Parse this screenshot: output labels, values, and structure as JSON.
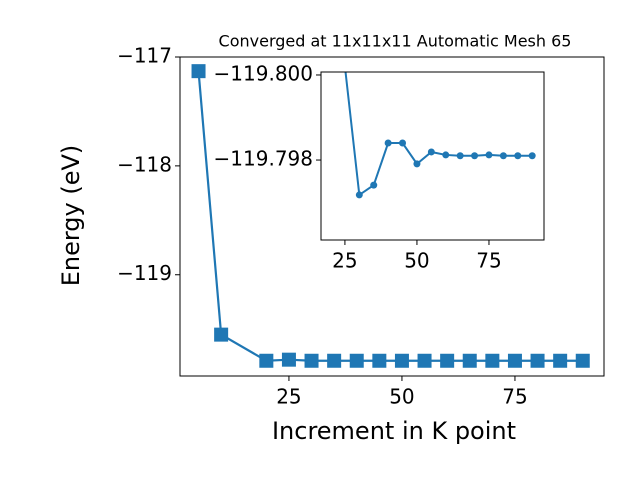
{
  "chart_data": [
    {
      "type": "line",
      "title": "Converged at 11x11x11 Automatic Mesh 65",
      "xlabel": "Increment in K point",
      "ylabel": "Energy (eV)",
      "x": [
        5,
        10,
        20,
        25,
        30,
        35,
        40,
        45,
        50,
        55,
        60,
        65,
        70,
        75,
        80,
        85,
        90
      ],
      "series": [
        {
          "color": "#1f77b4",
          "marker": "square",
          "values": [
            -117.13,
            -119.55,
            -119.79,
            -119.78,
            -119.79,
            -119.79,
            -119.79,
            -119.79,
            -119.79,
            -119.79,
            -119.79,
            -119.79,
            -119.79,
            -119.79,
            -119.79,
            -119.79,
            -119.79
          ]
        }
      ],
      "xlim": [
        0.9,
        94.7
      ],
      "ylim": [
        -119.93,
        -117.0
      ],
      "xticks": [
        25,
        50,
        75
      ],
      "yticks": [
        {
          "value": -119,
          "label": "−119"
        },
        {
          "value": -118,
          "label": "−118"
        },
        {
          "value": -117,
          "label": "−117"
        }
      ]
    },
    {
      "type": "line",
      "x": [
        25,
        30,
        35,
        40,
        45,
        50,
        55,
        60,
        65,
        70,
        75,
        80,
        85,
        90
      ],
      "series": [
        {
          "color": "#1f77b4",
          "marker": "circle",
          "values": [
            -119.8002,
            -119.79718,
            -119.79741,
            -119.7984,
            -119.7984,
            -119.79791,
            -119.79819,
            -119.79812,
            -119.7981,
            -119.7981,
            -119.79812,
            -119.7981,
            -119.7981,
            -119.7981
          ]
        }
      ],
      "xlim": [
        16.7,
        94.1
      ],
      "ylim": [
        -119.79612,
        -119.80007
      ],
      "xticks": [
        25,
        50,
        75
      ],
      "yticks": [
        {
          "value": -119.8,
          "label": "−119.800"
        },
        {
          "value": -119.798,
          "label": "−119.798"
        }
      ]
    }
  ]
}
